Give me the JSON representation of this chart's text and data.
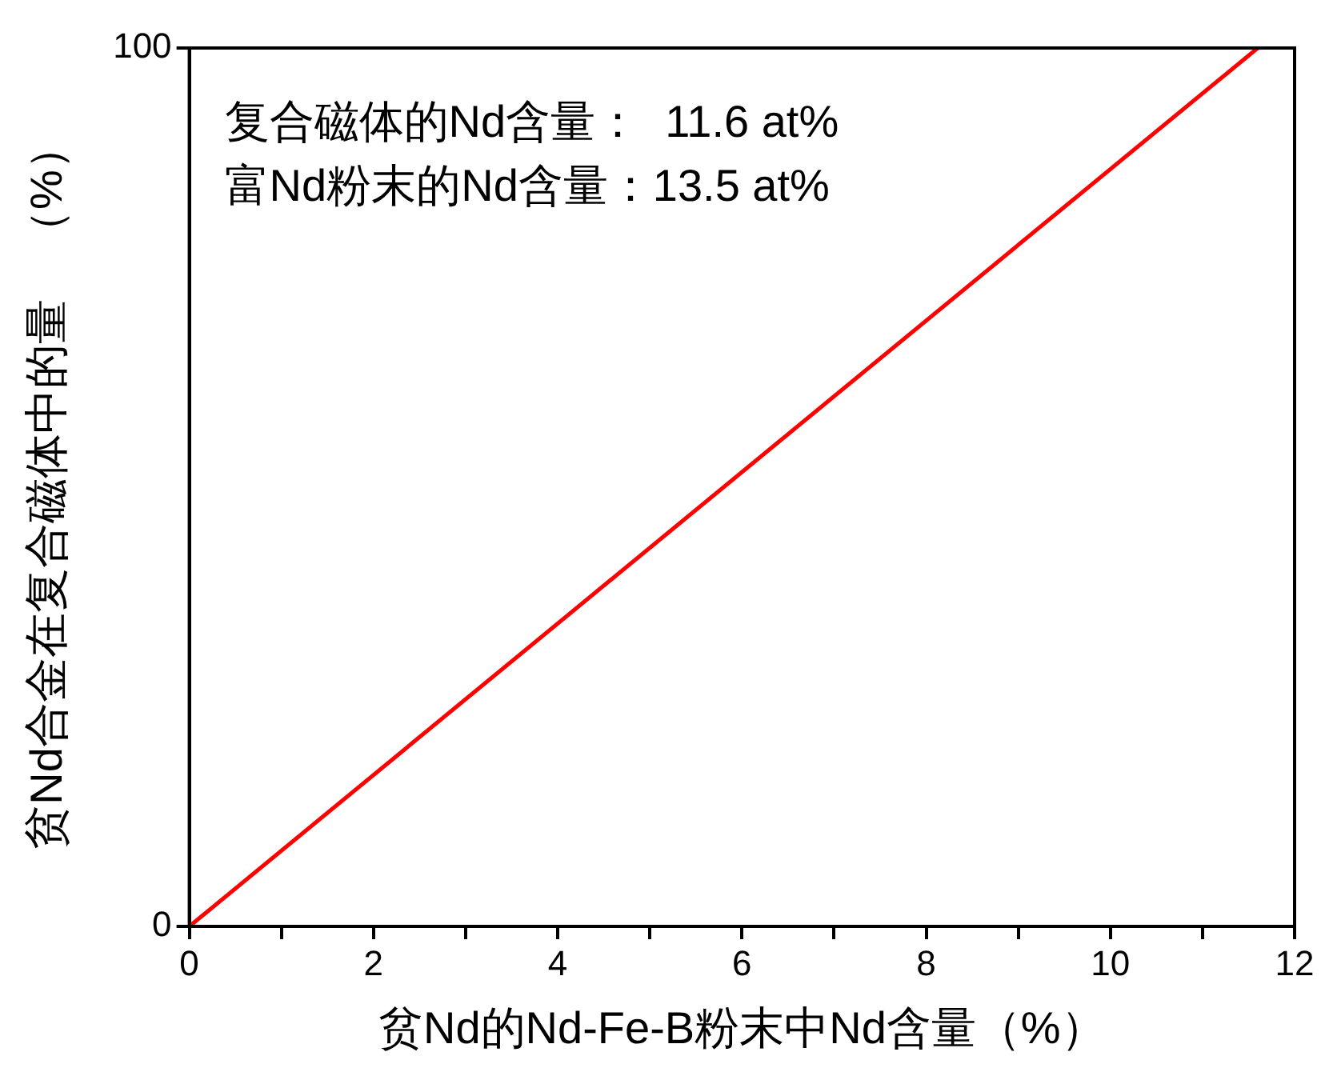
{
  "chart_data": {
    "type": "line",
    "xlabel": "贫Nd的Nd-Fe-B粉末中Nd含量（%）",
    "ylabel": "贫Nd合金在复合磁体中的量　（%）",
    "annotations": [
      "复合磁体的Nd含量：  11.6 at%",
      "富Nd粉末的Nd含量：13.5 at%"
    ],
    "series": [
      {
        "color": "#ff0000",
        "x": [
          0,
          11.6
        ],
        "values": [
          0,
          100
        ]
      }
    ],
    "xlim": [
      0,
      12
    ],
    "xticks": [
      0,
      {
        "value": 1,
        "label": null
      },
      2,
      {
        "value": 3,
        "label": null
      },
      4,
      {
        "value": 5,
        "label": null
      },
      6,
      {
        "value": 7,
        "label": null
      },
      8,
      {
        "value": 9,
        "label": null
      },
      10,
      {
        "value": 11,
        "label": null
      },
      12
    ],
    "ylim": [
      0,
      100
    ],
    "yticks": [
      0,
      100
    ],
    "grid": false,
    "legend": false,
    "marker": "none",
    "line_style": "solid"
  }
}
